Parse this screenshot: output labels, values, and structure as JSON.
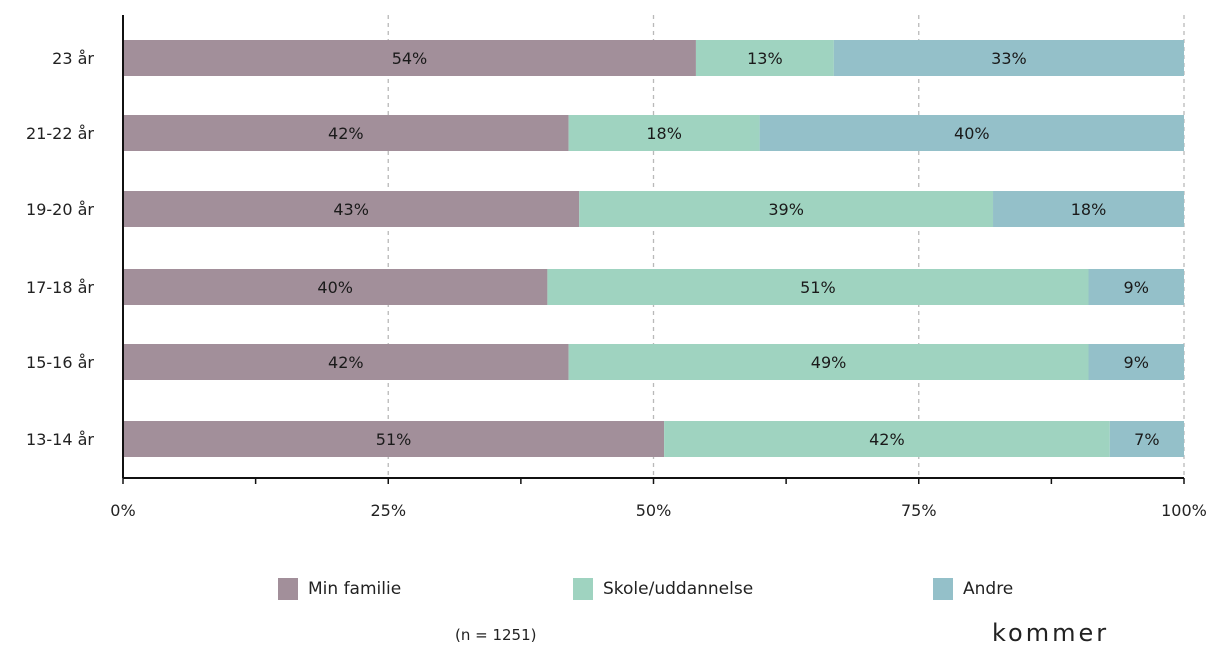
{
  "chart_data": {
    "type": "bar",
    "orientation": "horizontal",
    "stacked": true,
    "categories": [
      "23 år",
      "21-22 år",
      "19-20 år",
      "17-18 år",
      "15-16 år",
      "13-14 år"
    ],
    "series": [
      {
        "name": "Min familie",
        "color": "#a28f9a",
        "values": [
          54,
          42,
          43,
          40,
          42,
          51
        ]
      },
      {
        "name": "Skole/uddannelse",
        "color": "#9fd3c0",
        "values": [
          13,
          18,
          39,
          51,
          49,
          42
        ]
      },
      {
        "name": "Andre",
        "color": "#94c0c9",
        "values": [
          33,
          40,
          18,
          9,
          9,
          7
        ]
      }
    ],
    "xlim": [
      0,
      100
    ],
    "xticks": [
      "0%",
      "25%",
      "50%",
      "75%",
      "100%"
    ],
    "grid": "vertical dashed",
    "legend": "bottom"
  },
  "note": "(n = 1251)",
  "brand": "kommer"
}
